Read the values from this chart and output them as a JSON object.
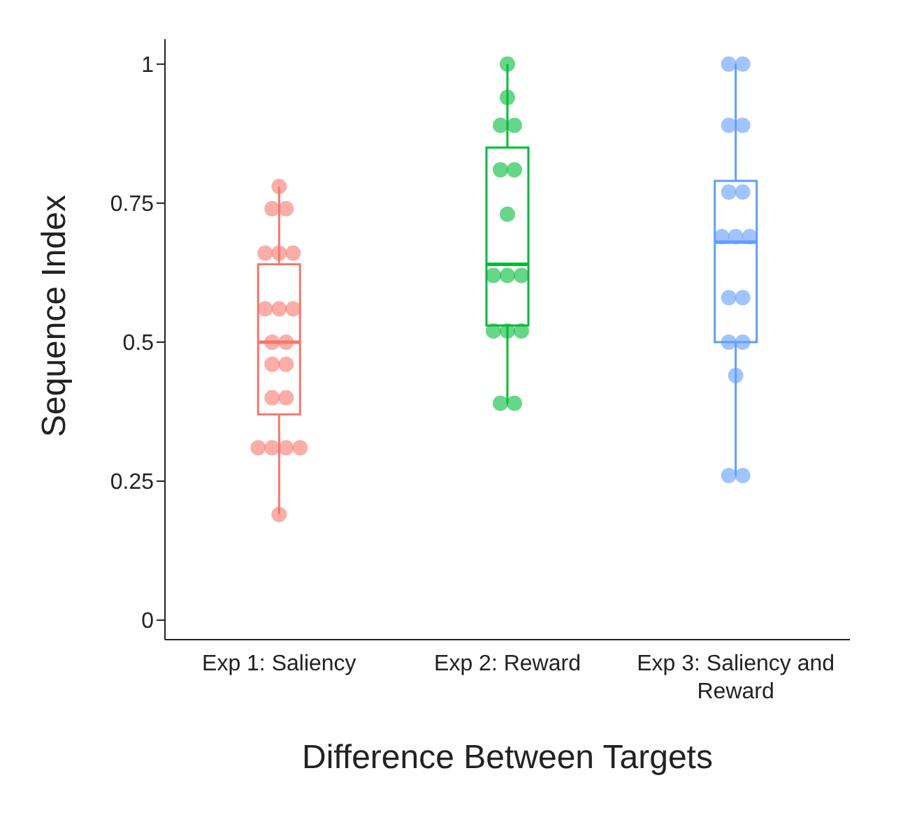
{
  "chart_data": {
    "type": "box",
    "xlabel": "Difference Between Targets",
    "ylabel": "Sequence Index",
    "categories": [
      "Exp 1: Saliency",
      "Exp 2: Reward",
      "Exp 3: Saliency and Reward"
    ],
    "colors": [
      "#f8766d",
      "#00ba38",
      "#619cff"
    ],
    "boxes": [
      {
        "low": 0.19,
        "q1": 0.37,
        "median": 0.5,
        "q3": 0.64,
        "high": 0.78
      },
      {
        "low": 0.39,
        "q1": 0.53,
        "median": 0.64,
        "q3": 0.85,
        "high": 1.0
      },
      {
        "low": 0.26,
        "q1": 0.5,
        "median": 0.68,
        "q3": 0.79,
        "high": 1.0
      }
    ],
    "series": [
      {
        "type": "scatter",
        "color": "#f8766d",
        "x": [
          "Exp 1: Saliency",
          "Exp 1: Saliency",
          "Exp 1: Saliency",
          "Exp 1: Saliency",
          "Exp 1: Saliency",
          "Exp 1: Saliency",
          "Exp 1: Saliency",
          "Exp 1: Saliency",
          "Exp 1: Saliency",
          "Exp 1: Saliency",
          "Exp 1: Saliency",
          "Exp 1: Saliency",
          "Exp 1: Saliency",
          "Exp 1: Saliency",
          "Exp 1: Saliency",
          "Exp 1: Saliency",
          "Exp 1: Saliency",
          "Exp 1: Saliency",
          "Exp 1: Saliency",
          "Exp 1: Saliency"
        ],
        "values": [
          0.78,
          0.74,
          0.74,
          0.66,
          0.66,
          0.66,
          0.56,
          0.56,
          0.56,
          0.5,
          0.5,
          0.46,
          0.46,
          0.4,
          0.4,
          0.31,
          0.31,
          0.31,
          0.31,
          0.19
        ]
      },
      {
        "type": "scatter",
        "color": "#00ba38",
        "x": [
          "Exp 2: Reward",
          "Exp 2: Reward",
          "Exp 2: Reward",
          "Exp 2: Reward",
          "Exp 2: Reward",
          "Exp 2: Reward",
          "Exp 2: Reward",
          "Exp 2: Reward",
          "Exp 2: Reward",
          "Exp 2: Reward",
          "Exp 2: Reward",
          "Exp 2: Reward",
          "Exp 2: Reward",
          "Exp 2: Reward",
          "Exp 2: Reward"
        ],
        "values": [
          1.0,
          0.94,
          0.89,
          0.89,
          0.81,
          0.81,
          0.73,
          0.62,
          0.62,
          0.62,
          0.52,
          0.52,
          0.52,
          0.39,
          0.39
        ]
      },
      {
        "type": "scatter",
        "color": "#619cff",
        "x": [
          "Exp 3: Saliency and Reward",
          "Exp 3: Saliency and Reward",
          "Exp 3: Saliency and Reward",
          "Exp 3: Saliency and Reward",
          "Exp 3: Saliency and Reward",
          "Exp 3: Saliency and Reward",
          "Exp 3: Saliency and Reward",
          "Exp 3: Saliency and Reward",
          "Exp 3: Saliency and Reward",
          "Exp 3: Saliency and Reward",
          "Exp 3: Saliency and Reward",
          "Exp 3: Saliency and Reward",
          "Exp 3: Saliency and Reward",
          "Exp 3: Saliency and Reward",
          "Exp 3: Saliency and Reward",
          "Exp 3: Saliency and Reward"
        ],
        "values": [
          1.0,
          1.0,
          0.89,
          0.89,
          0.77,
          0.77,
          0.69,
          0.69,
          0.69,
          0.58,
          0.58,
          0.5,
          0.5,
          0.44,
          0.26,
          0.26
        ]
      }
    ],
    "ylim": [
      -0.035,
      1.045
    ],
    "yticks": [
      0,
      0.25,
      0.5,
      0.75,
      1
    ],
    "grid": false,
    "legend": false,
    "marker": "circle"
  }
}
